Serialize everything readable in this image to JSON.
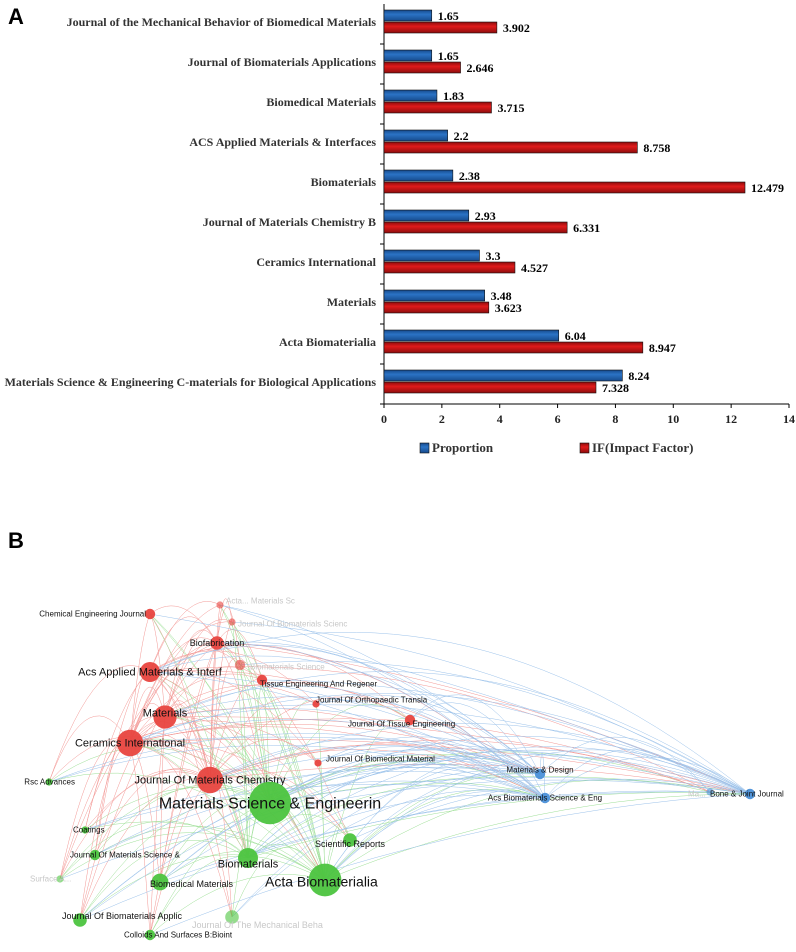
{
  "panel_a_label": "A",
  "panel_b_label": "B",
  "colors": {
    "proportion": "#2b73c5",
    "impact": "#e01b1b",
    "cluster_red": "#e8443f",
    "cluster_green": "#4cc43f",
    "cluster_blue": "#4a90d9"
  },
  "chart_data": [
    {
      "type": "bar",
      "orientation": "horizontal",
      "categories": [
        "Journal of the Mechanical Behavior of Biomedical Materials",
        "Journal of Biomaterials Applications",
        "Biomedical Materials",
        "ACS Applied Materials & Interfaces",
        "Biomaterials",
        "Journal of Materials Chemistry B",
        "Ceramics International",
        "Materials",
        "Acta Biomaterialia",
        "Materials Science & Engineering C-materials for Biological Applications"
      ],
      "series": [
        {
          "name": "Proportion",
          "values": [
            1.65,
            1.65,
            1.83,
            2.2,
            2.38,
            2.93,
            3.3,
            3.48,
            6.04,
            8.24
          ],
          "labels": [
            "1.65",
            "1.65",
            "1.83",
            "2.2",
            "2.38",
            "2.93",
            "3.3",
            "3.48",
            "6.04",
            "8.24"
          ]
        },
        {
          "name": "IF(Impact Factor)",
          "values": [
            3.902,
            2.646,
            3.715,
            8.758,
            12.479,
            6.331,
            4.527,
            3.623,
            8.947,
            7.328
          ],
          "labels": [
            "3.902",
            "2.646",
            "3.715",
            "8.758",
            "12.479",
            "6.331",
            "4.527",
            "3.623",
            "8.947",
            "7.328"
          ]
        }
      ],
      "xlim": [
        0,
        14
      ],
      "xticks": [
        "0",
        "2",
        "4",
        "6",
        "8",
        "10",
        "12",
        "14"
      ],
      "legend": "bottom"
    },
    {
      "type": "network",
      "nodes": [
        {
          "label": "Chemical Engineering Journal",
          "cluster": "red",
          "weight": 2
        },
        {
          "label": "Acta... Materials Sc",
          "cluster": "red",
          "weight": 1,
          "faded": true
        },
        {
          "label": "Journal Of Biomaterials Scienc",
          "cluster": "red",
          "weight": 1,
          "faded": true
        },
        {
          "label": "Biofabrication",
          "cluster": "red",
          "weight": 3
        },
        {
          "label": "Biomaterials Science",
          "cluster": "red",
          "weight": 2,
          "faded": true
        },
        {
          "label": "Acs Applied Materials & Interf",
          "cluster": "red",
          "weight": 5
        },
        {
          "label": "Tissue Engineering And Regener",
          "cluster": "red",
          "weight": 2
        },
        {
          "label": "Journal Of Orthopaedic Transla",
          "cluster": "red",
          "weight": 1
        },
        {
          "label": "Materials",
          "cluster": "red",
          "weight": 6
        },
        {
          "label": "Journal Of Tissue Engineering",
          "cluster": "red",
          "weight": 2
        },
        {
          "label": "Ceramics International",
          "cluster": "red",
          "weight": 7
        },
        {
          "label": "Journal Of Biomedical Material",
          "cluster": "red",
          "weight": 1
        },
        {
          "label": "Journal Of Materials Chemistry",
          "cluster": "red",
          "weight": 7
        },
        {
          "label": "Rsc Advances",
          "cluster": "green",
          "weight": 1
        },
        {
          "label": "Materials Science & Engineerin",
          "cluster": "green",
          "weight": 12
        },
        {
          "label": "Coatings",
          "cluster": "green",
          "weight": 1
        },
        {
          "label": "Scientific Reports",
          "cluster": "green",
          "weight": 3
        },
        {
          "label": "Journal Of Materials Science &",
          "cluster": "green",
          "weight": 2
        },
        {
          "label": "Surface A...",
          "cluster": "green",
          "weight": 1,
          "faded": true
        },
        {
          "label": "Biomaterials",
          "cluster": "green",
          "weight": 5
        },
        {
          "label": "Biomedical Materials",
          "cluster": "green",
          "weight": 4
        },
        {
          "label": "Acta Biomaterialia",
          "cluster": "green",
          "weight": 9
        },
        {
          "label": "Journal Of Biomaterials Applic",
          "cluster": "green",
          "weight": 3
        },
        {
          "label": "Journal Of The Mechanical Beha",
          "cluster": "green",
          "weight": 3,
          "faded": true
        },
        {
          "label": "Colloids And Surfaces B:Bioint",
          "cluster": "green",
          "weight": 2
        },
        {
          "label": "Materials & Design",
          "cluster": "blue",
          "weight": 2
        },
        {
          "label": "Acs Biomaterials Science & Eng",
          "cluster": "blue",
          "weight": 2
        },
        {
          "label": "Ma...",
          "cluster": "blue",
          "weight": 1,
          "faded": true
        },
        {
          "label": "Bone & Joint Journal",
          "cluster": "blue",
          "weight": 2
        }
      ]
    }
  ]
}
